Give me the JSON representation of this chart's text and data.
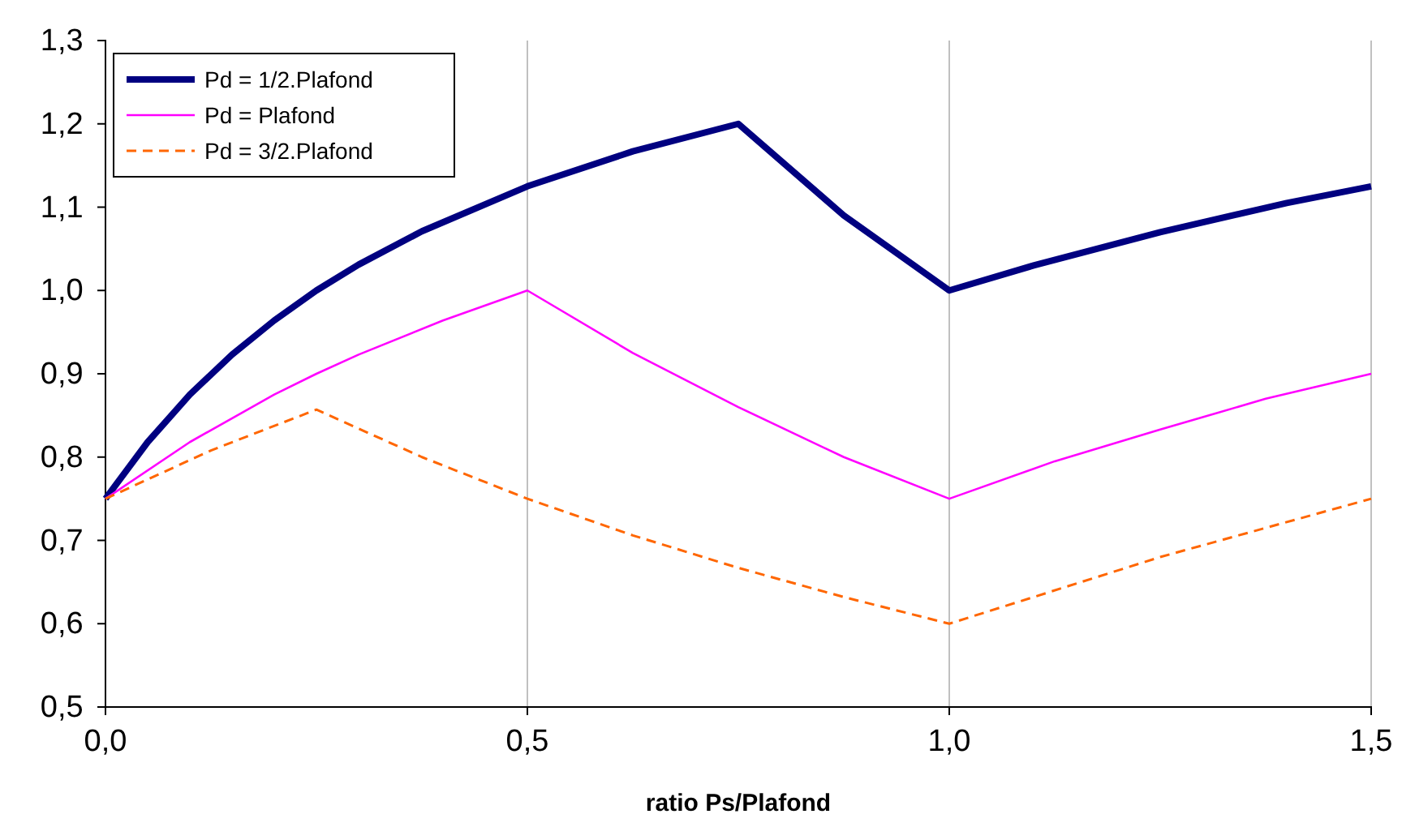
{
  "chart_data": {
    "type": "line",
    "xlabel": "ratio Ps/Plafond",
    "xlim": [
      0,
      1.5
    ],
    "ylim": [
      0.5,
      1.3
    ],
    "xticks": [
      {
        "value": 0,
        "label": "0,0"
      },
      {
        "value": 0.5,
        "label": "0,5"
      },
      {
        "value": 1,
        "label": "1,0"
      },
      {
        "value": 1.5,
        "label": "1,5"
      }
    ],
    "yticks": [
      {
        "value": 0.5,
        "label": "0,5"
      },
      {
        "value": 0.6,
        "label": "0,6"
      },
      {
        "value": 0.7,
        "label": "0,7"
      },
      {
        "value": 0.8,
        "label": "0,8"
      },
      {
        "value": 0.9,
        "label": "0,9"
      },
      {
        "value": 1.0,
        "label": "1,0"
      },
      {
        "value": 1.1,
        "label": "1,1"
      },
      {
        "value": 1.2,
        "label": "1,2"
      },
      {
        "value": 1.3,
        "label": "1,3"
      }
    ],
    "grid": "x",
    "legend": "top left",
    "marker": "none",
    "series": [
      {
        "name": "Pd = 1/2.Plafond",
        "color": "#000080",
        "line_style": "solid",
        "x": [
          0,
          0.05,
          0.1,
          0.15,
          0.2,
          0.25,
          0.3,
          0.375,
          0.5,
          0.625,
          0.75,
          0.875,
          1.0,
          1.1,
          1.25,
          1.4,
          1.5
        ],
        "values": [
          0.75,
          0.818,
          0.875,
          0.923,
          0.964,
          1.0,
          1.031,
          1.071,
          1.125,
          1.167,
          1.2,
          1.09,
          1.0,
          1.03,
          1.07,
          1.105,
          1.125
        ]
      },
      {
        "name": "Pd = Plafond",
        "color": "#ff00ff",
        "line_style": "solid",
        "x": [
          0,
          0.1,
          0.2,
          0.25,
          0.3,
          0.4,
          0.5,
          0.625,
          0.75,
          0.875,
          1.0,
          1.125,
          1.25,
          1.375,
          1.5
        ],
        "values": [
          0.75,
          0.818,
          0.875,
          0.9,
          0.923,
          0.964,
          1.0,
          0.925,
          0.86,
          0.8,
          0.75,
          0.795,
          0.833,
          0.87,
          0.9
        ]
      },
      {
        "name": "Pd = 3/2.Plafond",
        "color": "#ff6600",
        "line_style": "dashed",
        "x": [
          0,
          0.125,
          0.25,
          0.375,
          0.5,
          0.625,
          0.75,
          0.875,
          1.0,
          1.25,
          1.5
        ],
        "values": [
          0.75,
          0.808,
          0.857,
          0.8,
          0.75,
          0.706,
          0.667,
          0.632,
          0.6,
          0.68,
          0.75
        ]
      }
    ]
  }
}
